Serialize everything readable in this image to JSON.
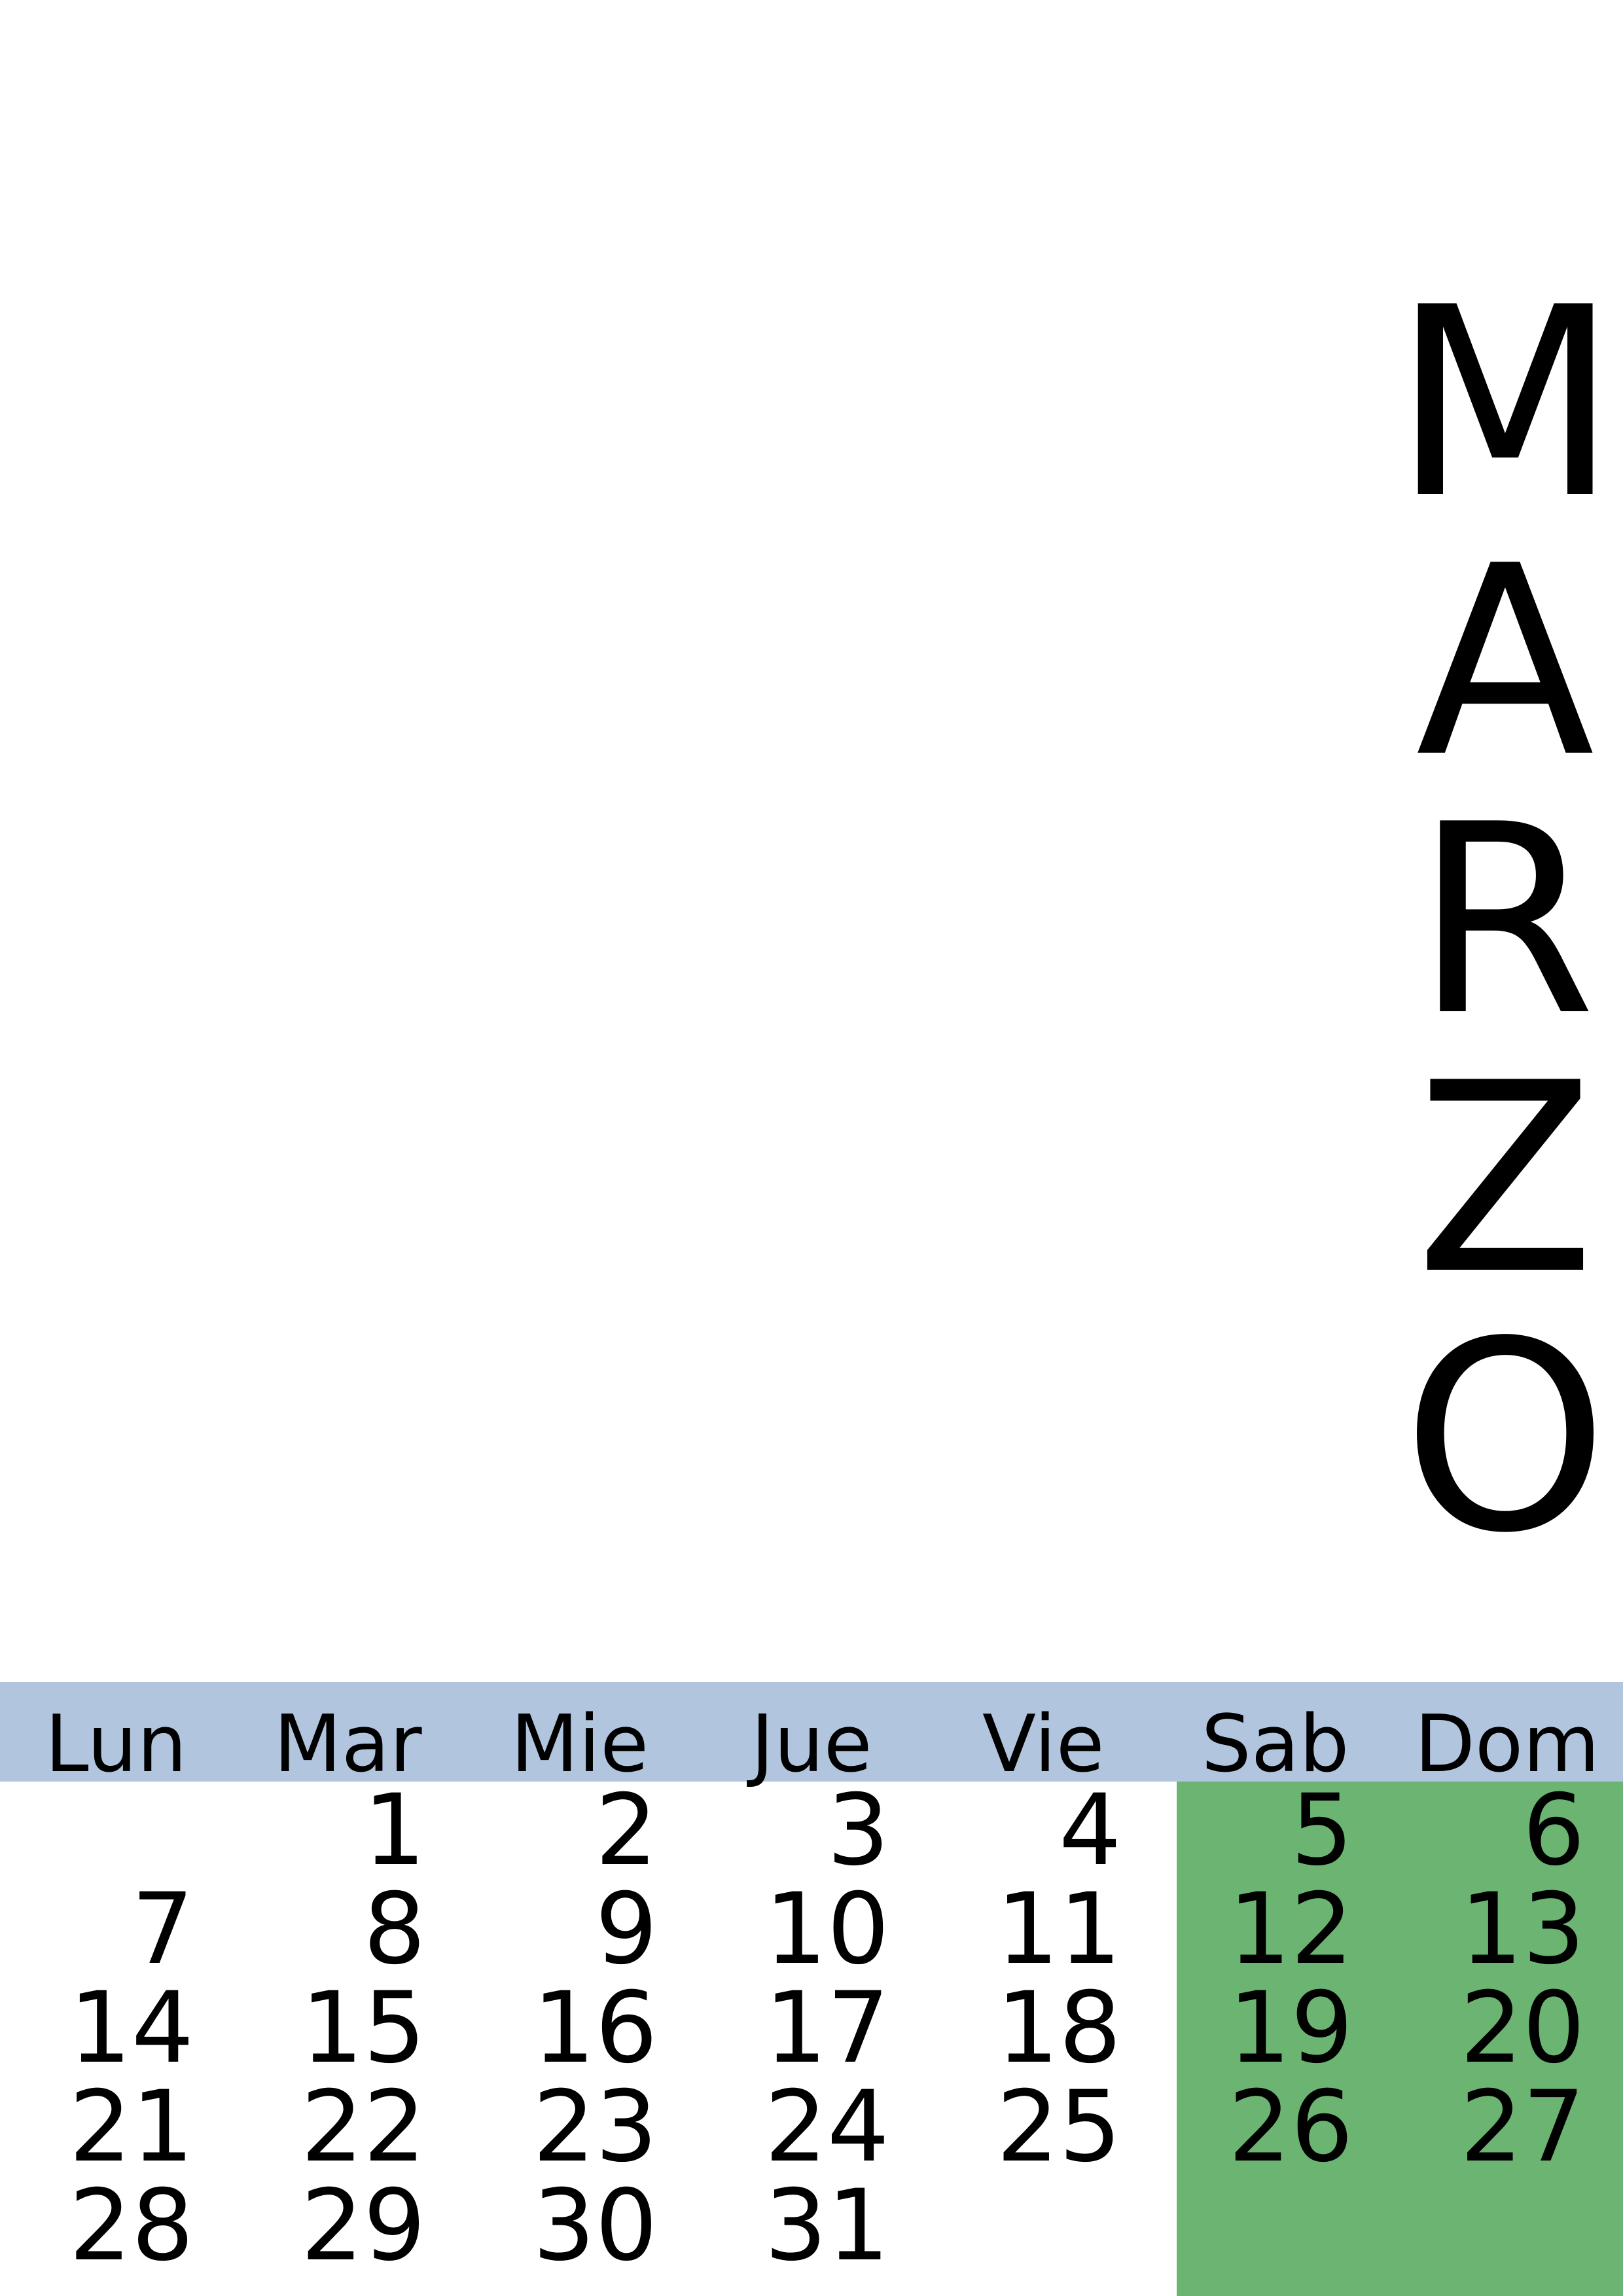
{
  "month": {
    "letters": [
      "M",
      "A",
      "R",
      "Z",
      "O"
    ]
  },
  "weekdays": [
    "Lun",
    "Mar",
    "Mie",
    "Jue",
    "Vie",
    "Sab",
    "Dom"
  ],
  "weeks": [
    [
      "",
      "1",
      "2",
      "3",
      "4",
      "5",
      "6"
    ],
    [
      "7",
      "8",
      "9",
      "10",
      "11",
      "12",
      "13"
    ],
    [
      "14",
      "15",
      "16",
      "17",
      "18",
      "19",
      "20"
    ],
    [
      "21",
      "22",
      "23",
      "24",
      "25",
      "26",
      "27"
    ],
    [
      "28",
      "29",
      "30",
      "31",
      "",
      "",
      ""
    ]
  ],
  "colors": {
    "header": "#b2c5de",
    "weekend": "#6bb471"
  }
}
